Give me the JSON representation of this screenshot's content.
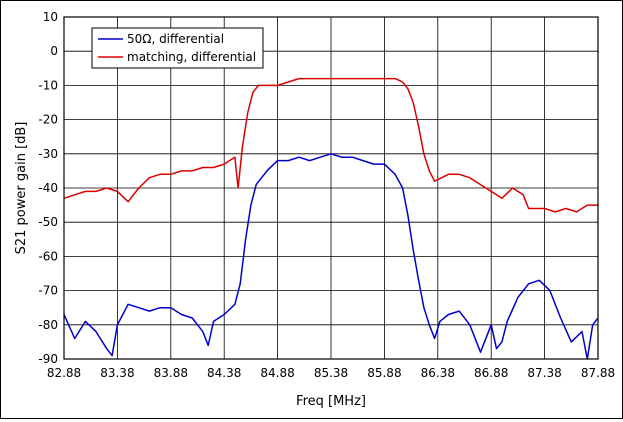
{
  "chart_data": {
    "type": "line",
    "xlabel": "Freq [MHz]",
    "ylabel": "S21 power gain [dB]",
    "xlim": [
      82.88,
      87.88
    ],
    "ylim": [
      -90,
      10
    ],
    "x_ticks": [
      "82.88",
      "83.38",
      "83.88",
      "84.38",
      "84.88",
      "85.38",
      "85.88",
      "86.38",
      "86.88",
      "87.38",
      "87.88"
    ],
    "y_ticks": [
      "10",
      "0",
      "-10",
      "-20",
      "-30",
      "-40",
      "-50",
      "-60",
      "-70",
      "-80",
      "-90"
    ],
    "grid": true,
    "legend_position": "top-left",
    "series": [
      {
        "name": "50Ω, differential",
        "color": "#0000cc",
        "x": [
          82.88,
          82.98,
          83.08,
          83.18,
          83.28,
          83.33,
          83.38,
          83.48,
          83.58,
          83.68,
          83.78,
          83.88,
          83.98,
          84.08,
          84.18,
          84.23,
          84.28,
          84.38,
          84.48,
          84.53,
          84.58,
          84.63,
          84.68,
          84.73,
          84.78,
          84.88,
          84.98,
          85.08,
          85.18,
          85.28,
          85.38,
          85.48,
          85.58,
          85.68,
          85.78,
          85.88,
          85.98,
          86.05,
          86.1,
          86.15,
          86.2,
          86.25,
          86.3,
          86.35,
          86.4,
          86.48,
          86.58,
          86.68,
          86.78,
          86.88,
          86.93,
          86.98,
          87.03,
          87.13,
          87.23,
          87.33,
          87.43,
          87.53,
          87.63,
          87.73,
          87.78,
          87.83,
          87.88
        ],
        "y": [
          -77,
          -84,
          -79,
          -82,
          -87,
          -89,
          -80,
          -74,
          -75,
          -76,
          -75,
          -75,
          -77,
          -78,
          -82,
          -86,
          -79,
          -77,
          -74,
          -68,
          -55,
          -45,
          -39,
          -37,
          -35,
          -32,
          -32,
          -31,
          -32,
          -31,
          -30,
          -31,
          -31,
          -32,
          -33,
          -33,
          -36,
          -40,
          -48,
          -58,
          -67,
          -75,
          -80,
          -84,
          -79,
          -77,
          -76,
          -80,
          -88,
          -80,
          -87,
          -85,
          -79,
          -72,
          -68,
          -67,
          -70,
          -78,
          -85,
          -82,
          -90,
          -80,
          -78
        ]
      },
      {
        "name": "matching, differential",
        "color": "#dd0000",
        "x": [
          82.88,
          82.98,
          83.08,
          83.18,
          83.28,
          83.38,
          83.48,
          83.58,
          83.68,
          83.78,
          83.88,
          83.98,
          84.08,
          84.18,
          84.28,
          84.38,
          84.43,
          84.48,
          84.51,
          84.55,
          84.6,
          84.65,
          84.7,
          84.78,
          84.88,
          84.98,
          85.08,
          85.18,
          85.28,
          85.38,
          85.48,
          85.58,
          85.68,
          85.78,
          85.88,
          85.98,
          86.05,
          86.1,
          86.15,
          86.2,
          86.25,
          86.3,
          86.35,
          86.48,
          86.58,
          86.68,
          86.78,
          86.88,
          86.93,
          86.98,
          87.08,
          87.18,
          87.23,
          87.28,
          87.38,
          87.48,
          87.58,
          87.68,
          87.78,
          87.88
        ],
        "y": [
          -43,
          -42,
          -41,
          -41,
          -40,
          -41,
          -44,
          -40,
          -37,
          -36,
          -36,
          -35,
          -35,
          -34,
          -34,
          -33,
          -32,
          -31,
          -40,
          -28,
          -18,
          -12,
          -10,
          -10,
          -10,
          -9,
          -8,
          -8,
          -8,
          -8,
          -8,
          -8,
          -8,
          -8,
          -8,
          -8,
          -9,
          -11,
          -15,
          -22,
          -30,
          -35,
          -38,
          -36,
          -36,
          -37,
          -39,
          -41,
          -42,
          -43,
          -40,
          -42,
          -46,
          -46,
          -46,
          -47,
          -46,
          -47,
          -45,
          -45
        ]
      }
    ]
  }
}
